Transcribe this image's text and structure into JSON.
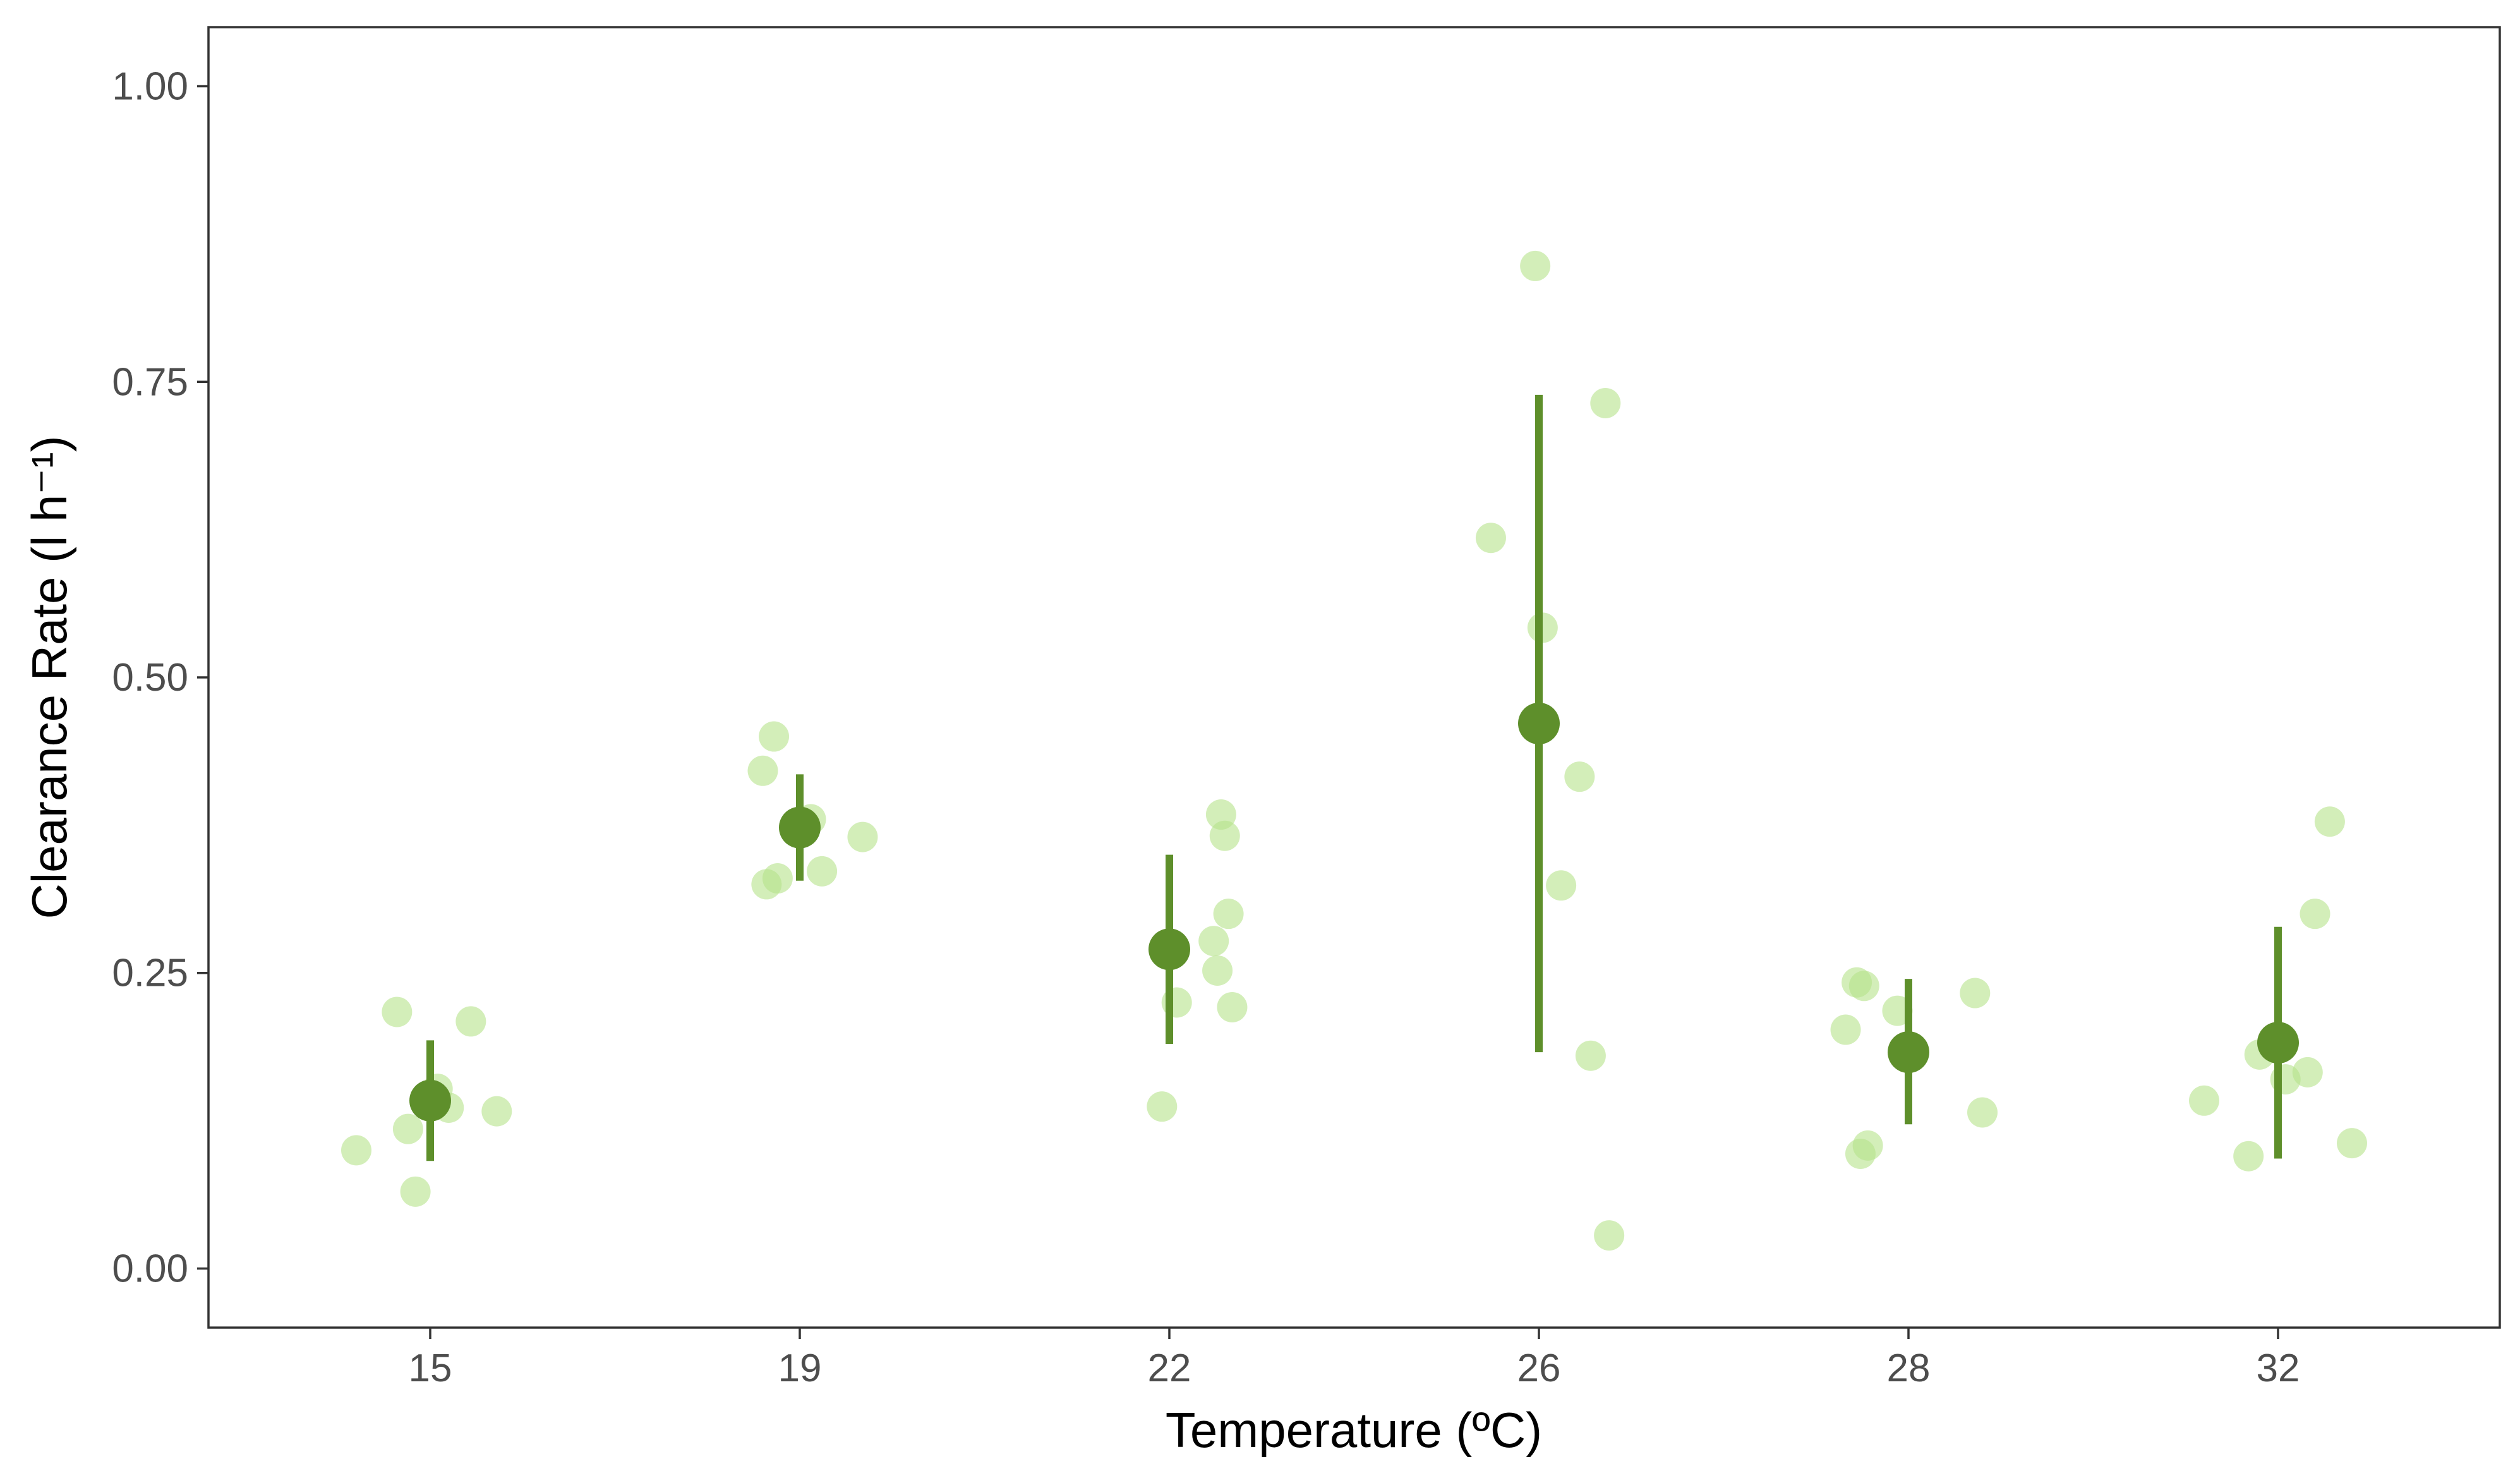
{
  "chart_data": {
    "type": "scatter",
    "xlabel": "Temperature (ºC)",
    "ylabel": "Clearance Rate (l h⁻¹)",
    "categories": [
      "15",
      "19",
      "22",
      "26",
      "28",
      "32"
    ],
    "ylim": [
      -0.05,
      1.05
    ],
    "yticks": [
      0.0,
      0.25,
      0.5,
      0.75,
      1.0
    ],
    "ytick_labels": [
      "0.00",
      "0.25",
      "0.50",
      "0.75",
      "1.00"
    ],
    "grid": false,
    "colors": {
      "raw_points": "#b5e28a",
      "summary": "#5e8f2b"
    },
    "raw_points": [
      {
        "category": "15",
        "x_offset": -0.2,
        "y": 0.1
      },
      {
        "category": "15",
        "x_offset": -0.09,
        "y": 0.217
      },
      {
        "category": "15",
        "x_offset": -0.06,
        "y": 0.118
      },
      {
        "category": "15",
        "x_offset": -0.04,
        "y": 0.065
      },
      {
        "category": "15",
        "x_offset": 0.02,
        "y": 0.152
      },
      {
        "category": "15",
        "x_offset": 0.05,
        "y": 0.136
      },
      {
        "category": "15",
        "x_offset": 0.11,
        "y": 0.209
      },
      {
        "category": "15",
        "x_offset": 0.18,
        "y": 0.133
      },
      {
        "category": "19",
        "x_offset": -0.1,
        "y": 0.421
      },
      {
        "category": "19",
        "x_offset": -0.07,
        "y": 0.45
      },
      {
        "category": "19",
        "x_offset": -0.09,
        "y": 0.325
      },
      {
        "category": "19",
        "x_offset": -0.06,
        "y": 0.33
      },
      {
        "category": "19",
        "x_offset": 0.03,
        "y": 0.38
      },
      {
        "category": "19",
        "x_offset": 0.06,
        "y": 0.336
      },
      {
        "category": "19",
        "x_offset": 0.17,
        "y": 0.365
      },
      {
        "category": "22",
        "x_offset": -0.02,
        "y": 0.137
      },
      {
        "category": "22",
        "x_offset": 0.02,
        "y": 0.225
      },
      {
        "category": "22",
        "x_offset": 0.12,
        "y": 0.277
      },
      {
        "category": "22",
        "x_offset": 0.13,
        "y": 0.252
      },
      {
        "category": "22",
        "x_offset": 0.14,
        "y": 0.384
      },
      {
        "category": "22",
        "x_offset": 0.15,
        "y": 0.366
      },
      {
        "category": "22",
        "x_offset": 0.16,
        "y": 0.3
      },
      {
        "category": "22",
        "x_offset": 0.17,
        "y": 0.221
      },
      {
        "category": "26",
        "x_offset": -0.13,
        "y": 0.618
      },
      {
        "category": "26",
        "x_offset": -0.01,
        "y": 0.848
      },
      {
        "category": "26",
        "x_offset": 0.01,
        "y": 0.542
      },
      {
        "category": "26",
        "x_offset": 0.06,
        "y": 0.324
      },
      {
        "category": "26",
        "x_offset": 0.11,
        "y": 0.416
      },
      {
        "category": "26",
        "x_offset": 0.14,
        "y": 0.18
      },
      {
        "category": "26",
        "x_offset": 0.18,
        "y": 0.732
      },
      {
        "category": "26",
        "x_offset": 0.19,
        "y": 0.028
      },
      {
        "category": "28",
        "x_offset": -0.17,
        "y": 0.202
      },
      {
        "category": "28",
        "x_offset": -0.14,
        "y": 0.242
      },
      {
        "category": "28",
        "x_offset": -0.12,
        "y": 0.239
      },
      {
        "category": "28",
        "x_offset": -0.13,
        "y": 0.097
      },
      {
        "category": "28",
        "x_offset": -0.11,
        "y": 0.104
      },
      {
        "category": "28",
        "x_offset": -0.03,
        "y": 0.218
      },
      {
        "category": "28",
        "x_offset": 0.18,
        "y": 0.233
      },
      {
        "category": "28",
        "x_offset": 0.2,
        "y": 0.132
      },
      {
        "category": "32",
        "x_offset": -0.2,
        "y": 0.142
      },
      {
        "category": "32",
        "x_offset": -0.08,
        "y": 0.095
      },
      {
        "category": "32",
        "x_offset": -0.05,
        "y": 0.181
      },
      {
        "category": "32",
        "x_offset": 0.02,
        "y": 0.16
      },
      {
        "category": "32",
        "x_offset": 0.08,
        "y": 0.166
      },
      {
        "category": "32",
        "x_offset": 0.1,
        "y": 0.3
      },
      {
        "category": "32",
        "x_offset": 0.14,
        "y": 0.378
      },
      {
        "category": "32",
        "x_offset": 0.2,
        "y": 0.106
      }
    ],
    "series": [
      {
        "mean": [
          0.142,
          0.373,
          0.27,
          0.461,
          0.183,
          0.191
        ],
        "lower": [
          0.091,
          0.328,
          0.19,
          0.183,
          0.122,
          0.093
        ],
        "upper": [
          0.193,
          0.418,
          0.35,
          0.739,
          0.245,
          0.289
        ]
      }
    ]
  }
}
